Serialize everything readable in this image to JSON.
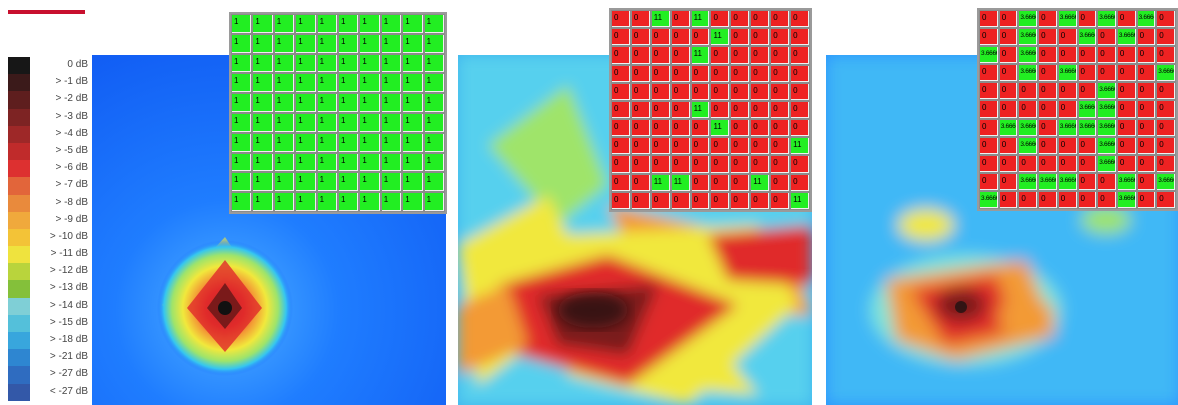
{
  "legend": [
    {
      "label": "0 dB",
      "color": "#171717"
    },
    {
      "label": "> -1 dB",
      "color": "#3b1a1a"
    },
    {
      "label": "> -2 dB",
      "color": "#5e1e1e"
    },
    {
      "label": "> -3 dB",
      "color": "#7d2323"
    },
    {
      "label": "> -4 dB",
      "color": "#9e2828"
    },
    {
      "label": "> -5 dB",
      "color": "#c02b2b"
    },
    {
      "label": "> -6 dB",
      "color": "#dd3030"
    },
    {
      "label": "> -7 dB",
      "color": "#e2653a"
    },
    {
      "label": "> -8 dB",
      "color": "#e98a3c"
    },
    {
      "label": "> -9 dB",
      "color": "#f0a93c"
    },
    {
      "label": "> -10 dB",
      "color": "#f3c337"
    },
    {
      "label": "> -11 dB",
      "color": "#efe33e"
    },
    {
      "label": "> -12 dB",
      "color": "#b9d43c"
    },
    {
      "label": "> -13 dB",
      "color": "#84c03a"
    },
    {
      "label": "> -14 dB",
      "color": "#7fcfd6"
    },
    {
      "label": "> -15 dB",
      "color": "#54c0da"
    },
    {
      "label": "> -18 dB",
      "color": "#38a6dd"
    },
    {
      "label": "> -21 dB",
      "color": "#2e86d1"
    },
    {
      "label": "> -27 dB",
      "color": "#2f6cc0"
    },
    {
      "label": "< -27 dB",
      "color": "#3358a8"
    }
  ],
  "colors": {
    "on": "#22ee22",
    "off": "#ee2222",
    "field": "#1e6bff"
  },
  "panels": [
    {
      "id": "uniform",
      "cell_labels": {
        "on": "1",
        "off": "0"
      },
      "rows": [
        "1111111111",
        "1111111111",
        "1111111111",
        "1111111111",
        "1111111111",
        "1111111111",
        "1111111111",
        "1111111111",
        "1111111111",
        "1111111111"
      ]
    },
    {
      "id": "sparse",
      "cell_labels": {
        "on": "11",
        "off": "0"
      },
      "rows": [
        "0010100000",
        "0000010000",
        "0000100000",
        "0000000000",
        "0000000000",
        "0000100000",
        "0000010000",
        "0000000001",
        "0000000000",
        "0011000100",
        "0000000001"
      ]
    },
    {
      "id": "partial",
      "cell_labels": {
        "on": "3.6666",
        "off": "0"
      },
      "rows": [
        "0010101010",
        "0010010100",
        "1010000000",
        "0010100001",
        "0000001000",
        "0000011000",
        "0110111000",
        "0010001000",
        "0000001000",
        "0011100101",
        "1000000100"
      ]
    }
  ]
}
